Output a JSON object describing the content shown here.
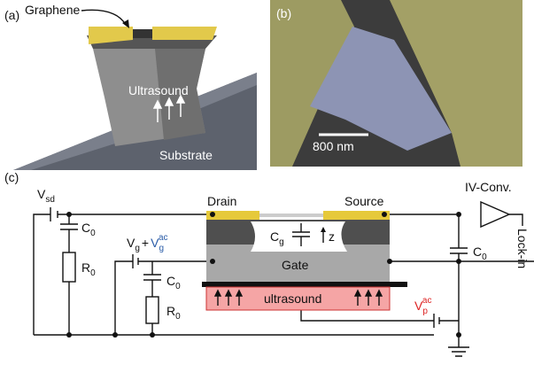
{
  "panels": [
    {
      "label": "(a)",
      "graphene": "Graphene",
      "ultrasound": "Ultrasound",
      "substrate": "Substrate"
    },
    {
      "label": "(b)",
      "scale_bar": "800 nm"
    },
    {
      "label": "(c)",
      "vsd": {
        "base": "V",
        "sub": "sd"
      },
      "c0_left": {
        "base": "C",
        "sub": "0"
      },
      "r0_left": {
        "base": "R",
        "sub": "0"
      },
      "vg": {
        "base": "V",
        "sub": "g",
        "plus": "+",
        "ac_base": "V",
        "ac_sub": "g",
        "ac_sup": "ac"
      },
      "c0_mid": {
        "base": "C",
        "sub": "0"
      },
      "r0_mid": {
        "base": "R",
        "sub": "0"
      },
      "drain": "Drain",
      "source": "Source",
      "cg": {
        "base": "C",
        "sub": "g"
      },
      "z": "z",
      "gate": "Gate",
      "ultrasound": "ultrasound",
      "iv_conv": "IV-Conv.",
      "c0_right": {
        "base": "C",
        "sub": "0"
      },
      "lock_in": "Lock-in",
      "vp": {
        "base": "V",
        "sub": "p",
        "sup": "ac"
      }
    }
  ]
}
